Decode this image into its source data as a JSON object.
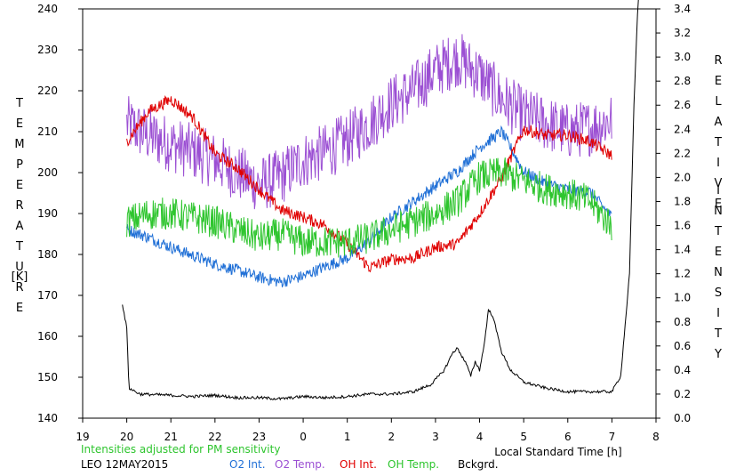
{
  "chart_data": {
    "type": "line",
    "x_unit": "Local Standard Time [h]",
    "xlabel": "Local Standard Time [h]",
    "x_ticks": [
      19,
      20,
      21,
      22,
      23,
      0,
      1,
      2,
      3,
      4,
      5,
      6,
      7,
      8
    ],
    "xlim_hours": [
      19,
      32
    ],
    "left_axis": {
      "label_letters": [
        "T",
        "E",
        "M",
        "P",
        "E",
        "R",
        "A",
        "T",
        "U",
        "R",
        "E"
      ],
      "unit": "[K]",
      "ylim": [
        140,
        240
      ],
      "ticks": [
        140,
        150,
        160,
        170,
        180,
        190,
        200,
        210,
        220,
        230,
        240
      ]
    },
    "right_axis": {
      "label_word1": [
        "R",
        "E",
        "L",
        "A",
        "T",
        "I",
        "V",
        "E"
      ],
      "label_word2": [
        "I",
        "N",
        "T",
        "E",
        "N",
        "S",
        "I",
        "T",
        "Y"
      ],
      "ylim": [
        0.0,
        3.4
      ],
      "ticks": [
        "0.0",
        "0.2",
        "0.4",
        "0.6",
        "0.8",
        "1.0",
        "1.2",
        "1.4",
        "1.6",
        "1.8",
        "2.0",
        "2.2",
        "2.4",
        "2.6",
        "2.8",
        "3.0",
        "3.2",
        "3.4"
      ]
    },
    "annotation": "Intensities adjusted for PM sensitivity",
    "station_date": "LEO 12MAY2015",
    "legend": [
      {
        "name": "O2 Int.",
        "color": "#1f6fd6"
      },
      {
        "name": "O2 Temp.",
        "color": "#9b4fd3"
      },
      {
        "name": "OH Int.",
        "color": "#e00000"
      },
      {
        "name": "OH Temp.",
        "color": "#2ec52e"
      },
      {
        "name": "Bckgrd.",
        "color": "#000000"
      }
    ],
    "series": [
      {
        "name": "O2 Temp.",
        "axis": "left",
        "color": "#9b4fd3",
        "x": [
          20.0,
          20.5,
          21.0,
          21.5,
          22.0,
          22.5,
          23.0,
          23.5,
          24.0,
          24.5,
          25.0,
          25.5,
          26.0,
          26.5,
          27.0,
          27.5,
          28.0,
          28.5,
          29.0,
          29.5,
          30.0,
          30.5,
          31.0
        ],
        "y": [
          212,
          209,
          207,
          205,
          203,
          200,
          197,
          199,
          203,
          205,
          208,
          212,
          217,
          220,
          225,
          228,
          224,
          218,
          214,
          212,
          210,
          211,
          213
        ],
        "noise": 7
      },
      {
        "name": "O2 Int.",
        "axis": "right",
        "color": "#1f6fd6",
        "x": [
          20.0,
          20.5,
          21.0,
          21.5,
          22.0,
          22.5,
          23.0,
          23.5,
          24.0,
          24.5,
          25.0,
          25.5,
          26.0,
          26.5,
          27.0,
          27.5,
          28.0,
          28.5,
          29.0,
          29.5,
          30.0,
          30.5,
          31.0
        ],
        "y": [
          1.57,
          1.5,
          1.42,
          1.35,
          1.28,
          1.23,
          1.17,
          1.13,
          1.18,
          1.26,
          1.33,
          1.47,
          1.67,
          1.8,
          1.93,
          2.05,
          2.25,
          2.38,
          2.05,
          1.95,
          1.9,
          1.88,
          1.67
        ],
        "noise": 0.05
      },
      {
        "name": "OH Int.",
        "axis": "right",
        "color": "#e00000",
        "x": [
          20.0,
          20.5,
          21.0,
          21.5,
          22.0,
          22.5,
          23.0,
          23.5,
          24.0,
          24.5,
          25.0,
          25.5,
          26.0,
          26.5,
          27.0,
          27.5,
          28.0,
          28.5,
          29.0,
          29.5,
          30.0,
          30.5,
          31.0
        ],
        "y": [
          2.3,
          2.55,
          2.65,
          2.5,
          2.2,
          2.08,
          1.9,
          1.73,
          1.67,
          1.6,
          1.45,
          1.25,
          1.32,
          1.33,
          1.42,
          1.45,
          1.7,
          2.0,
          2.4,
          2.35,
          2.35,
          2.3,
          2.18
        ],
        "noise": 0.05
      },
      {
        "name": "OH Temp.",
        "axis": "left",
        "color": "#2ec52e",
        "x": [
          20.0,
          20.5,
          21.0,
          21.5,
          22.0,
          22.5,
          23.0,
          23.5,
          24.0,
          24.5,
          25.0,
          25.5,
          26.0,
          26.5,
          27.0,
          27.5,
          28.0,
          28.5,
          29.0,
          29.5,
          30.0,
          30.5,
          31.0
        ],
        "y": [
          188,
          190,
          190,
          189,
          188,
          186,
          184,
          185,
          183,
          183,
          183,
          184,
          186,
          188,
          190,
          193,
          199,
          200,
          198,
          196,
          195,
          193,
          187
        ],
        "noise": 4
      },
      {
        "name": "Bckgrd.",
        "axis": "right",
        "color": "#000000",
        "x": [
          19.9,
          20.0,
          20.05,
          20.3,
          21.0,
          21.5,
          22.0,
          22.5,
          23.0,
          23.5,
          24.0,
          24.5,
          25.0,
          25.5,
          26.0,
          26.5,
          26.9,
          27.2,
          27.4,
          27.5,
          27.7,
          27.8,
          27.9,
          28.0,
          28.1,
          28.2,
          28.3,
          28.4,
          28.5,
          28.7,
          29.0,
          29.5,
          30.0,
          30.5,
          31.0,
          31.2,
          31.4,
          31.5,
          31.6
        ],
        "y": [
          0.95,
          0.75,
          0.25,
          0.2,
          0.19,
          0.18,
          0.19,
          0.17,
          0.17,
          0.16,
          0.18,
          0.17,
          0.18,
          0.2,
          0.2,
          0.22,
          0.28,
          0.4,
          0.55,
          0.58,
          0.45,
          0.35,
          0.47,
          0.4,
          0.6,
          0.9,
          0.85,
          0.7,
          0.55,
          0.4,
          0.3,
          0.25,
          0.22,
          0.22,
          0.22,
          0.35,
          1.2,
          2.6,
          3.55
        ],
        "noise": 0.012
      }
    ]
  }
}
